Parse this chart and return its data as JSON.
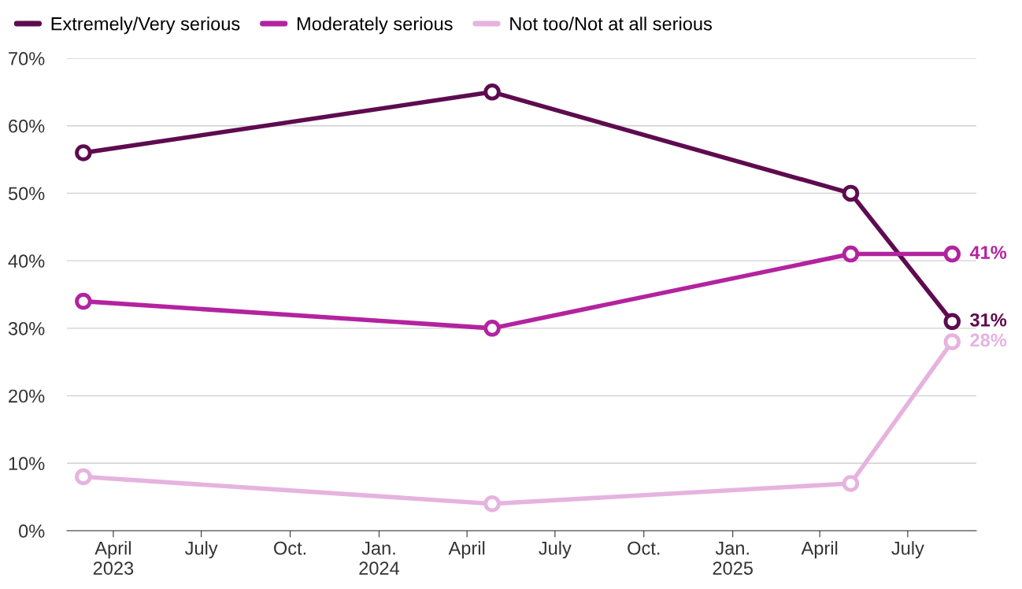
{
  "chart_data": {
    "type": "line",
    "x": [
      "2023-03-01",
      "2024-04-27",
      "2025-05-03",
      "2025-08-16"
    ],
    "series": [
      {
        "name": "Extremely/Very serious",
        "color": "#5e0b4f",
        "values": [
          56,
          65,
          50,
          31
        ],
        "value_labels": [
          null,
          null,
          null,
          "31%"
        ]
      },
      {
        "name": "Moderately serious",
        "color": "#b3239f",
        "values": [
          34,
          30,
          41,
          41
        ],
        "value_labels": [
          null,
          null,
          null,
          "41%"
        ]
      },
      {
        "name": "Not too/Not at all serious",
        "color": "#e6b3df",
        "values": [
          8,
          4,
          7,
          28
        ],
        "value_labels": [
          null,
          null,
          null,
          "28%"
        ]
      }
    ],
    "xlim": [
      "2023-02-12",
      "2025-09-10"
    ],
    "xticks": [
      {
        "value": "2023-04-01",
        "label": "April\n2023"
      },
      {
        "value": "2023-07-01",
        "label": "July"
      },
      {
        "value": "2023-10-01",
        "label": "Oct."
      },
      {
        "value": "2024-01-01",
        "label": "Jan.\n2024"
      },
      {
        "value": "2024-04-01",
        "label": "April"
      },
      {
        "value": "2024-07-01",
        "label": "July"
      },
      {
        "value": "2024-10-01",
        "label": "Oct."
      },
      {
        "value": "2025-01-01",
        "label": "Jan.\n2025"
      },
      {
        "value": "2025-04-01",
        "label": "April"
      },
      {
        "value": "2025-07-01",
        "label": "July"
      }
    ],
    "ylim": [
      0,
      70
    ],
    "yticks": [
      {
        "value": 0,
        "label": "0%"
      },
      {
        "value": 10,
        "label": "10%"
      },
      {
        "value": 20,
        "label": "20%"
      },
      {
        "value": 30,
        "label": "30%"
      },
      {
        "value": 40,
        "label": "40%"
      },
      {
        "value": 50,
        "label": "50%"
      },
      {
        "value": 60,
        "label": "60%"
      },
      {
        "value": 70,
        "label": "70%"
      }
    ],
    "grid": "y",
    "legend": "top left",
    "marker": "circle",
    "line_style": "solid"
  }
}
